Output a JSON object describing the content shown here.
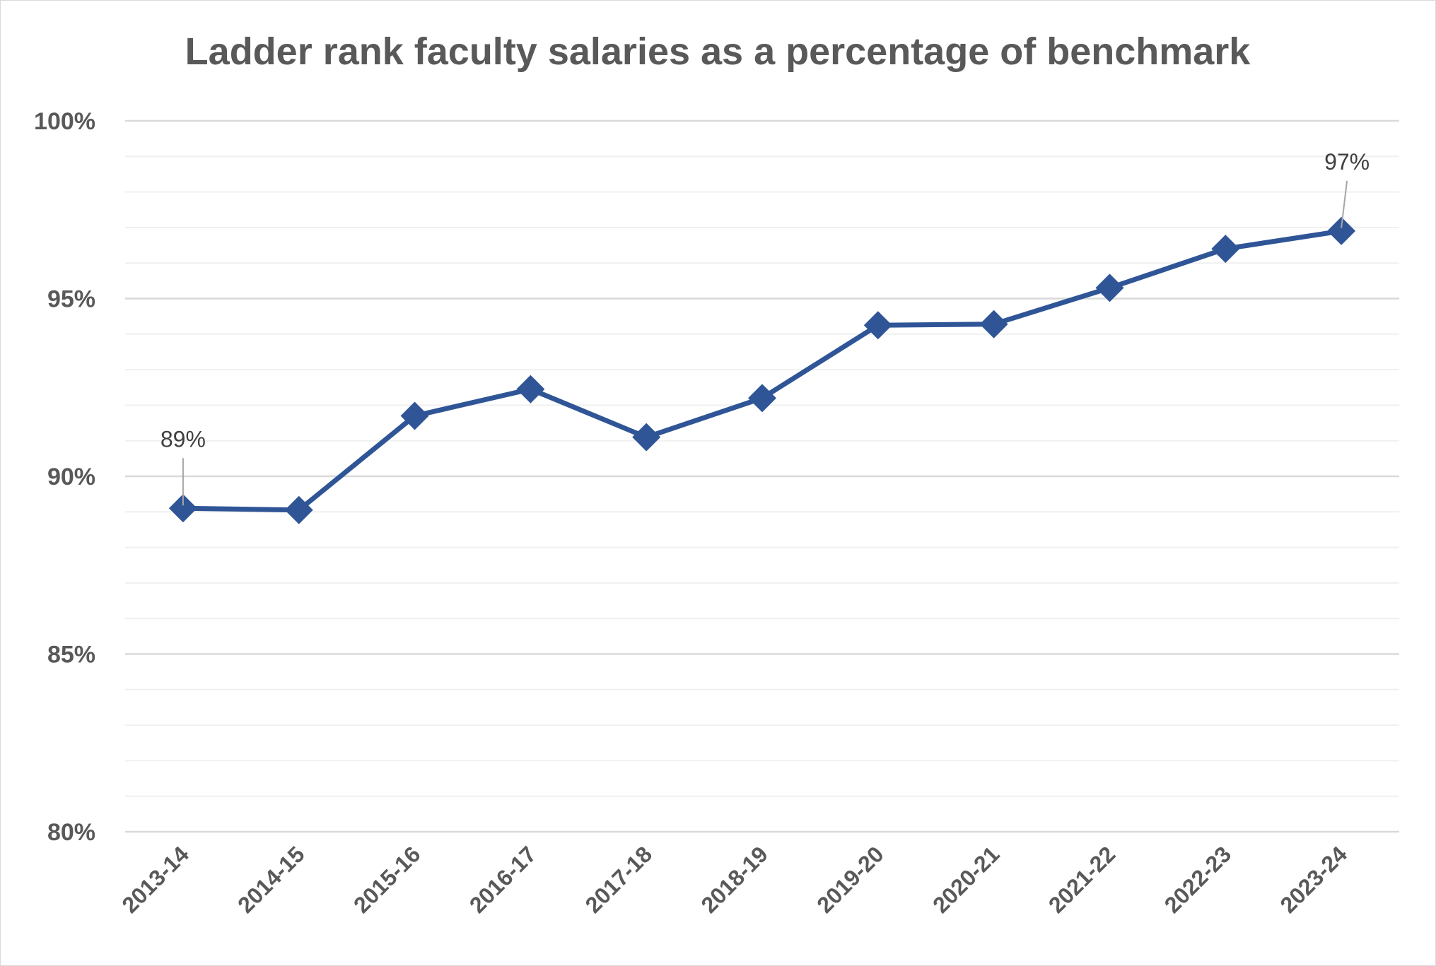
{
  "chart_data": {
    "type": "line",
    "title": "Ladder rank faculty salaries as a percentage of benchmark",
    "xlabel": "",
    "ylabel": "",
    "categories": [
      "2013-14",
      "2014-15",
      "2015-16",
      "2016-17",
      "2017-18",
      "2018-19",
      "2019-20",
      "2020-21",
      "2021-22",
      "2022-23",
      "2023-24"
    ],
    "series": [
      {
        "values": [
          89.1,
          89.05,
          91.7,
          92.45,
          91.1,
          92.2,
          94.25,
          94.28,
          95.3,
          96.4,
          96.9
        ]
      }
    ],
    "ylim": [
      80,
      100
    ],
    "y_major_ticks": [
      80,
      85,
      90,
      95,
      100
    ],
    "y_tick_labels": [
      "80%",
      "85%",
      "90%",
      "95%",
      "100%"
    ],
    "y_minor_step": 1,
    "data_labels": [
      {
        "category": "2013-14",
        "text": "89%"
      },
      {
        "category": "2023-24",
        "text": "97%"
      }
    ],
    "grid": true,
    "legend": "none",
    "colors": {
      "line": "#2f5597",
      "major_grid": "#d9d9d9",
      "minor_grid": "#f0f0f0",
      "text": "#595959",
      "leader": "#a6a6a6"
    }
  }
}
